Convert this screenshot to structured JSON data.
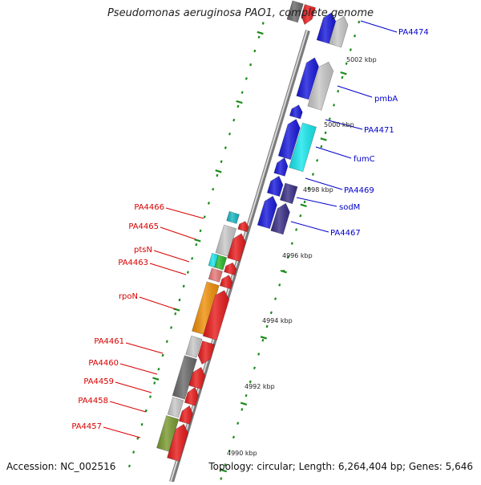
{
  "title": "Pseudomonas aeruginosa PAO1, complete genome",
  "accession": "Accession: NC_002516",
  "topology": "Topology: circular; Length: 6,264,404 bp; Genes: 5,646",
  "colors": {
    "blue": "#1a1adc",
    "red": "#e81c1c",
    "navy": "#3a3088",
    "cyan": "#18e8ee",
    "teal": "#1ab8c4",
    "gray": "#a0a0a0",
    "lightgray": "#c8c8c8",
    "darkgray": "#6a6a6a",
    "orange": "#f0900a",
    "olive": "#7a9a30",
    "green": "#2ab82a",
    "pink": "#e87878",
    "labelBlue": "#0000cc",
    "labelRed": "#d80000",
    "tick": "#1a8a1a"
  },
  "ticks": [
    "5002 kbp",
    "5000 kbp",
    "4998 kbp",
    "4996 kbp",
    "4994 kbp",
    "4992 kbp",
    "4990 kbp"
  ],
  "geneLabels": [
    {
      "text": "PA4474",
      "side": "right"
    },
    {
      "text": "pmbA",
      "side": "right"
    },
    {
      "text": "PA4471",
      "side": "right"
    },
    {
      "text": "fumC",
      "side": "right"
    },
    {
      "text": "PA4469",
      "side": "right"
    },
    {
      "text": "sodM",
      "side": "right"
    },
    {
      "text": "PA4467",
      "side": "right"
    },
    {
      "text": "PA4466",
      "side": "left"
    },
    {
      "text": "PA4465",
      "side": "left"
    },
    {
      "text": "ptsN",
      "side": "left"
    },
    {
      "text": "PA4463",
      "side": "left"
    },
    {
      "text": "rpoN",
      "side": "left"
    },
    {
      "text": "PA4461",
      "side": "left"
    },
    {
      "text": "PA4460",
      "side": "left"
    },
    {
      "text": "PA4459",
      "side": "left"
    },
    {
      "text": "PA4458",
      "side": "left"
    },
    {
      "text": "PA4457",
      "side": "left"
    }
  ]
}
